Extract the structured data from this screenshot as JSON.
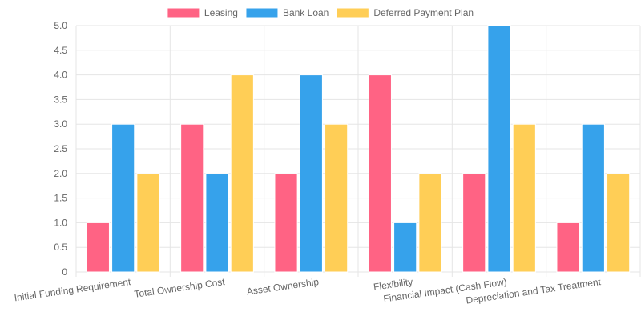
{
  "chart_data": {
    "type": "bar",
    "categories": [
      "Initial Funding Requirement",
      "Total Ownership Cost",
      "Asset Ownership",
      "Flexibility",
      "Financial Impact (Cash Flow)",
      "Depreciation and Tax Treatment"
    ],
    "series": [
      {
        "name": "Leasing",
        "values": [
          1,
          3,
          2,
          4,
          2,
          1
        ],
        "color": "#ff6384"
      },
      {
        "name": "Bank Loan",
        "values": [
          3,
          2,
          4,
          1,
          5,
          3
        ],
        "color": "#36a2eb"
      },
      {
        "name": "Deferred Payment Plan",
        "values": [
          2,
          4,
          3,
          2,
          3,
          2
        ],
        "color": "#ffce56"
      }
    ],
    "ylim": [
      0,
      5
    ],
    "yticks": [
      "0",
      "0.5",
      "1.0",
      "1.5",
      "2.0",
      "2.5",
      "3.0",
      "3.5",
      "4.0",
      "4.5",
      "5.0"
    ],
    "grid": true,
    "legend_position": "top"
  }
}
